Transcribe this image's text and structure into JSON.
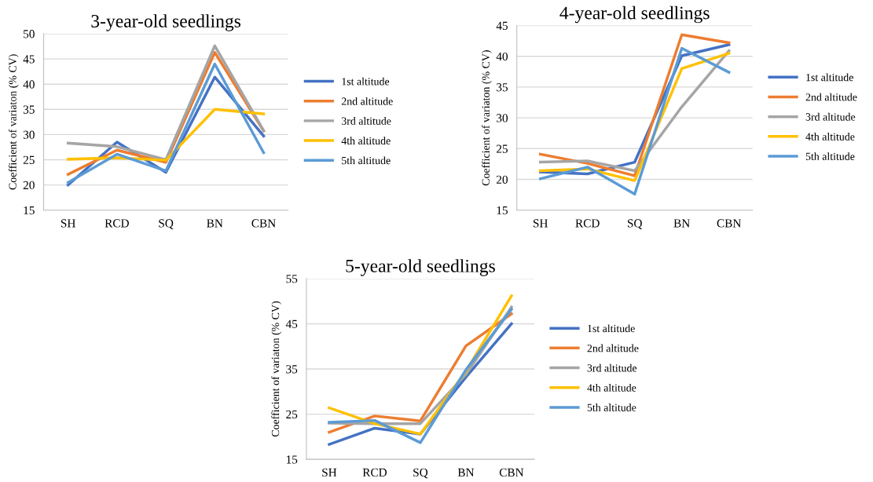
{
  "chart_data": [
    {
      "type": "line",
      "title": "3-year-old seedlings",
      "ylabel": "Coefficient of variaton (% CV)",
      "categories": [
        "SH",
        "RCD",
        "SQ",
        "BN",
        "CBN"
      ],
      "ylim": [
        15,
        50
      ],
      "yticks": [
        15,
        20,
        25,
        30,
        35,
        40,
        45,
        50
      ],
      "grid": "y",
      "legend": "right",
      "series": [
        {
          "name": "1st altitude",
          "color": "#4472c4",
          "values": [
            20.0,
            28.5,
            22.5,
            41.4,
            29.7
          ]
        },
        {
          "name": "2nd altitude",
          "color": "#ed7d31",
          "values": [
            22.1,
            26.9,
            24.5,
            46.3,
            30.7
          ]
        },
        {
          "name": "3rd altitude",
          "color": "#a5a5a5",
          "values": [
            28.3,
            27.6,
            25.0,
            47.6,
            30.8
          ]
        },
        {
          "name": "4th altitude",
          "color": "#ffc000",
          "values": [
            25.1,
            25.4,
            24.9,
            35.0,
            34.1
          ]
        },
        {
          "name": "5th altitude",
          "color": "#5b9bd5",
          "values": [
            20.5,
            26.1,
            22.8,
            44.0,
            26.4
          ]
        }
      ]
    },
    {
      "type": "line",
      "title": "4-year-old seedlings",
      "ylabel": "Coefficient of variaton (% CV)",
      "categories": [
        "SH",
        "RCD",
        "SQ",
        "BN",
        "CBN"
      ],
      "ylim": [
        15,
        45
      ],
      "yticks": [
        15,
        20,
        25,
        30,
        35,
        40,
        45
      ],
      "grid": "y",
      "legend": "right",
      "series": [
        {
          "name": "1st altitude",
          "color": "#4472c4",
          "values": [
            21.2,
            20.9,
            22.8,
            40.1,
            41.9
          ]
        },
        {
          "name": "2nd altitude",
          "color": "#ed7d31",
          "values": [
            24.1,
            22.6,
            20.6,
            43.5,
            42.2
          ]
        },
        {
          "name": "3rd altitude",
          "color": "#a5a5a5",
          "values": [
            22.8,
            23.0,
            21.4,
            31.8,
            40.9
          ]
        },
        {
          "name": "4th altitude",
          "color": "#ffc000",
          "values": [
            21.4,
            21.7,
            19.8,
            38.0,
            40.5
          ]
        },
        {
          "name": "5th altitude",
          "color": "#5b9bd5",
          "values": [
            20.1,
            22.0,
            17.6,
            41.3,
            37.4
          ]
        }
      ]
    },
    {
      "type": "line",
      "title": "5-year-old seedlings",
      "ylabel": "Coefficient of variaton (% CV)",
      "categories": [
        "SH",
        "RCD",
        "SQ",
        "BN",
        "CBN"
      ],
      "ylim": [
        15,
        55
      ],
      "yticks": [
        15,
        25,
        35,
        45,
        55
      ],
      "grid": "y",
      "legend": "right",
      "series": [
        {
          "name": "1st altitude",
          "color": "#4472c4",
          "values": [
            18.3,
            21.9,
            20.6,
            33.2,
            45.0
          ]
        },
        {
          "name": "2nd altitude",
          "color": "#ed7d31",
          "values": [
            21.0,
            24.6,
            23.5,
            40.1,
            47.2
          ]
        },
        {
          "name": "3rd altitude",
          "color": "#a5a5a5",
          "values": [
            23.0,
            22.9,
            22.9,
            33.8,
            48.7
          ]
        },
        {
          "name": "4th altitude",
          "color": "#ffc000",
          "values": [
            26.4,
            22.9,
            20.6,
            34.5,
            51.2
          ]
        },
        {
          "name": "5th altitude",
          "color": "#5b9bd5",
          "values": [
            23.2,
            23.6,
            18.7,
            34.8,
            48.2
          ]
        }
      ]
    }
  ]
}
